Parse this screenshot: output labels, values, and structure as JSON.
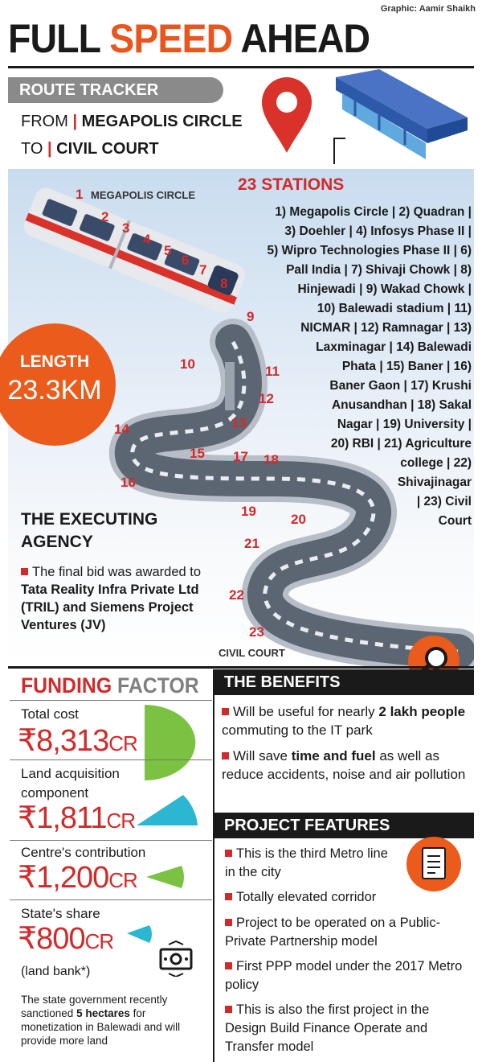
{
  "credit": "Graphic: Aamir Shaikh",
  "headline": {
    "part1": "FULL ",
    "accent": "SPEED",
    "part2": " AHEAD"
  },
  "route_tracker": {
    "tag": "ROUTE TRACKER",
    "from_label": "FROM",
    "from_value": "MEGAPOLIS CIRCLE",
    "to_label": "TO",
    "to_value": "CIVIL COURT"
  },
  "map": {
    "start_label": "MEGAPOLIS CIRCLE",
    "end_label": "CIVIL COURT",
    "station_numbers": [
      "1",
      "2",
      "3",
      "4",
      "5",
      "6",
      "7",
      "8",
      "9",
      "10",
      "11",
      "12",
      "13",
      "14",
      "15",
      "16",
      "17",
      "18",
      "19",
      "20",
      "21",
      "22",
      "23"
    ]
  },
  "stations": {
    "title": "23 STATIONS",
    "lines": [
      "1) Megapolis Circle | 2) Quadran |",
      "3) Doehler | 4) Infosys Phase II |",
      "5) Wipro Technologies Phase II | 6)",
      "Pall India | 7) Shivaji Chowk | 8)",
      "Hinjewadi | 9) Wakad Chowk |",
      "10) Balewadi stadium | 11)",
      "NICMAR | 12) Ramnagar | 13)",
      "Laxminagar | 14) Balewadi",
      "Phata | 15) Baner | 16)",
      "Baner Gaon | 17) Krushi",
      "Anusandhan | 18) Sakal",
      "Nagar | 19) University |",
      "20) RBI | 21) Agriculture",
      "college | 22)",
      "Shivajinagar",
      "| 23) Civil",
      "Court"
    ]
  },
  "length": {
    "label": "LENGTH",
    "value": "23.3KM"
  },
  "executing_agency": {
    "title_line1": "THE EXECUTING",
    "title_line2": "AGENCY",
    "text_pre": "The final bid was awarded to ",
    "text_bold": "Tata Reality Infra Private Ltd (TRIL) and Siemens Project Ventures (JV)"
  },
  "funding": {
    "title_a": "FUNDING",
    "title_b": " FACTOR",
    "items": [
      {
        "label": "Total cost",
        "amount": "₹8,313",
        "unit": "CR"
      },
      {
        "label": "Land acquisition component",
        "amount": "₹1,811",
        "unit": "CR"
      },
      {
        "label": "Centre's contribution",
        "amount": "₹1,200",
        "unit": "CR"
      },
      {
        "label": "State's share",
        "amount": "₹800",
        "unit": "CR"
      }
    ],
    "land_bank": "(land bank*)",
    "note_pre": "The state government recently sanctioned ",
    "note_bold": "5 hectares",
    "note_post": " for monetization in Balewadi and will provide more land"
  },
  "benefits": {
    "title": "THE BENEFITS",
    "b1_pre": "Will be useful for nearly ",
    "b1_bold": "2 lakh people",
    "b1_post": " commuting to the IT park",
    "b2_pre": "Will save ",
    "b2_bold": "time and fuel",
    "b2_post": " as well as reduce accidents, noise and air pollution"
  },
  "features": {
    "title": "PROJECT FEATURES",
    "items": [
      "This is the third Metro line in the city",
      "Totally elevated corridor",
      "Project to be operated on a Public-Private Partnership model",
      "First PPP model under the 2017 Metro policy",
      "This is also the first project in the Design Build Finance Operate and Transfer model"
    ]
  },
  "colors": {
    "accent": "#e9551d",
    "red": "#d22a2a",
    "green": "#7cc242",
    "teal": "#2bb6d1",
    "grey": "#8a8a8a"
  }
}
